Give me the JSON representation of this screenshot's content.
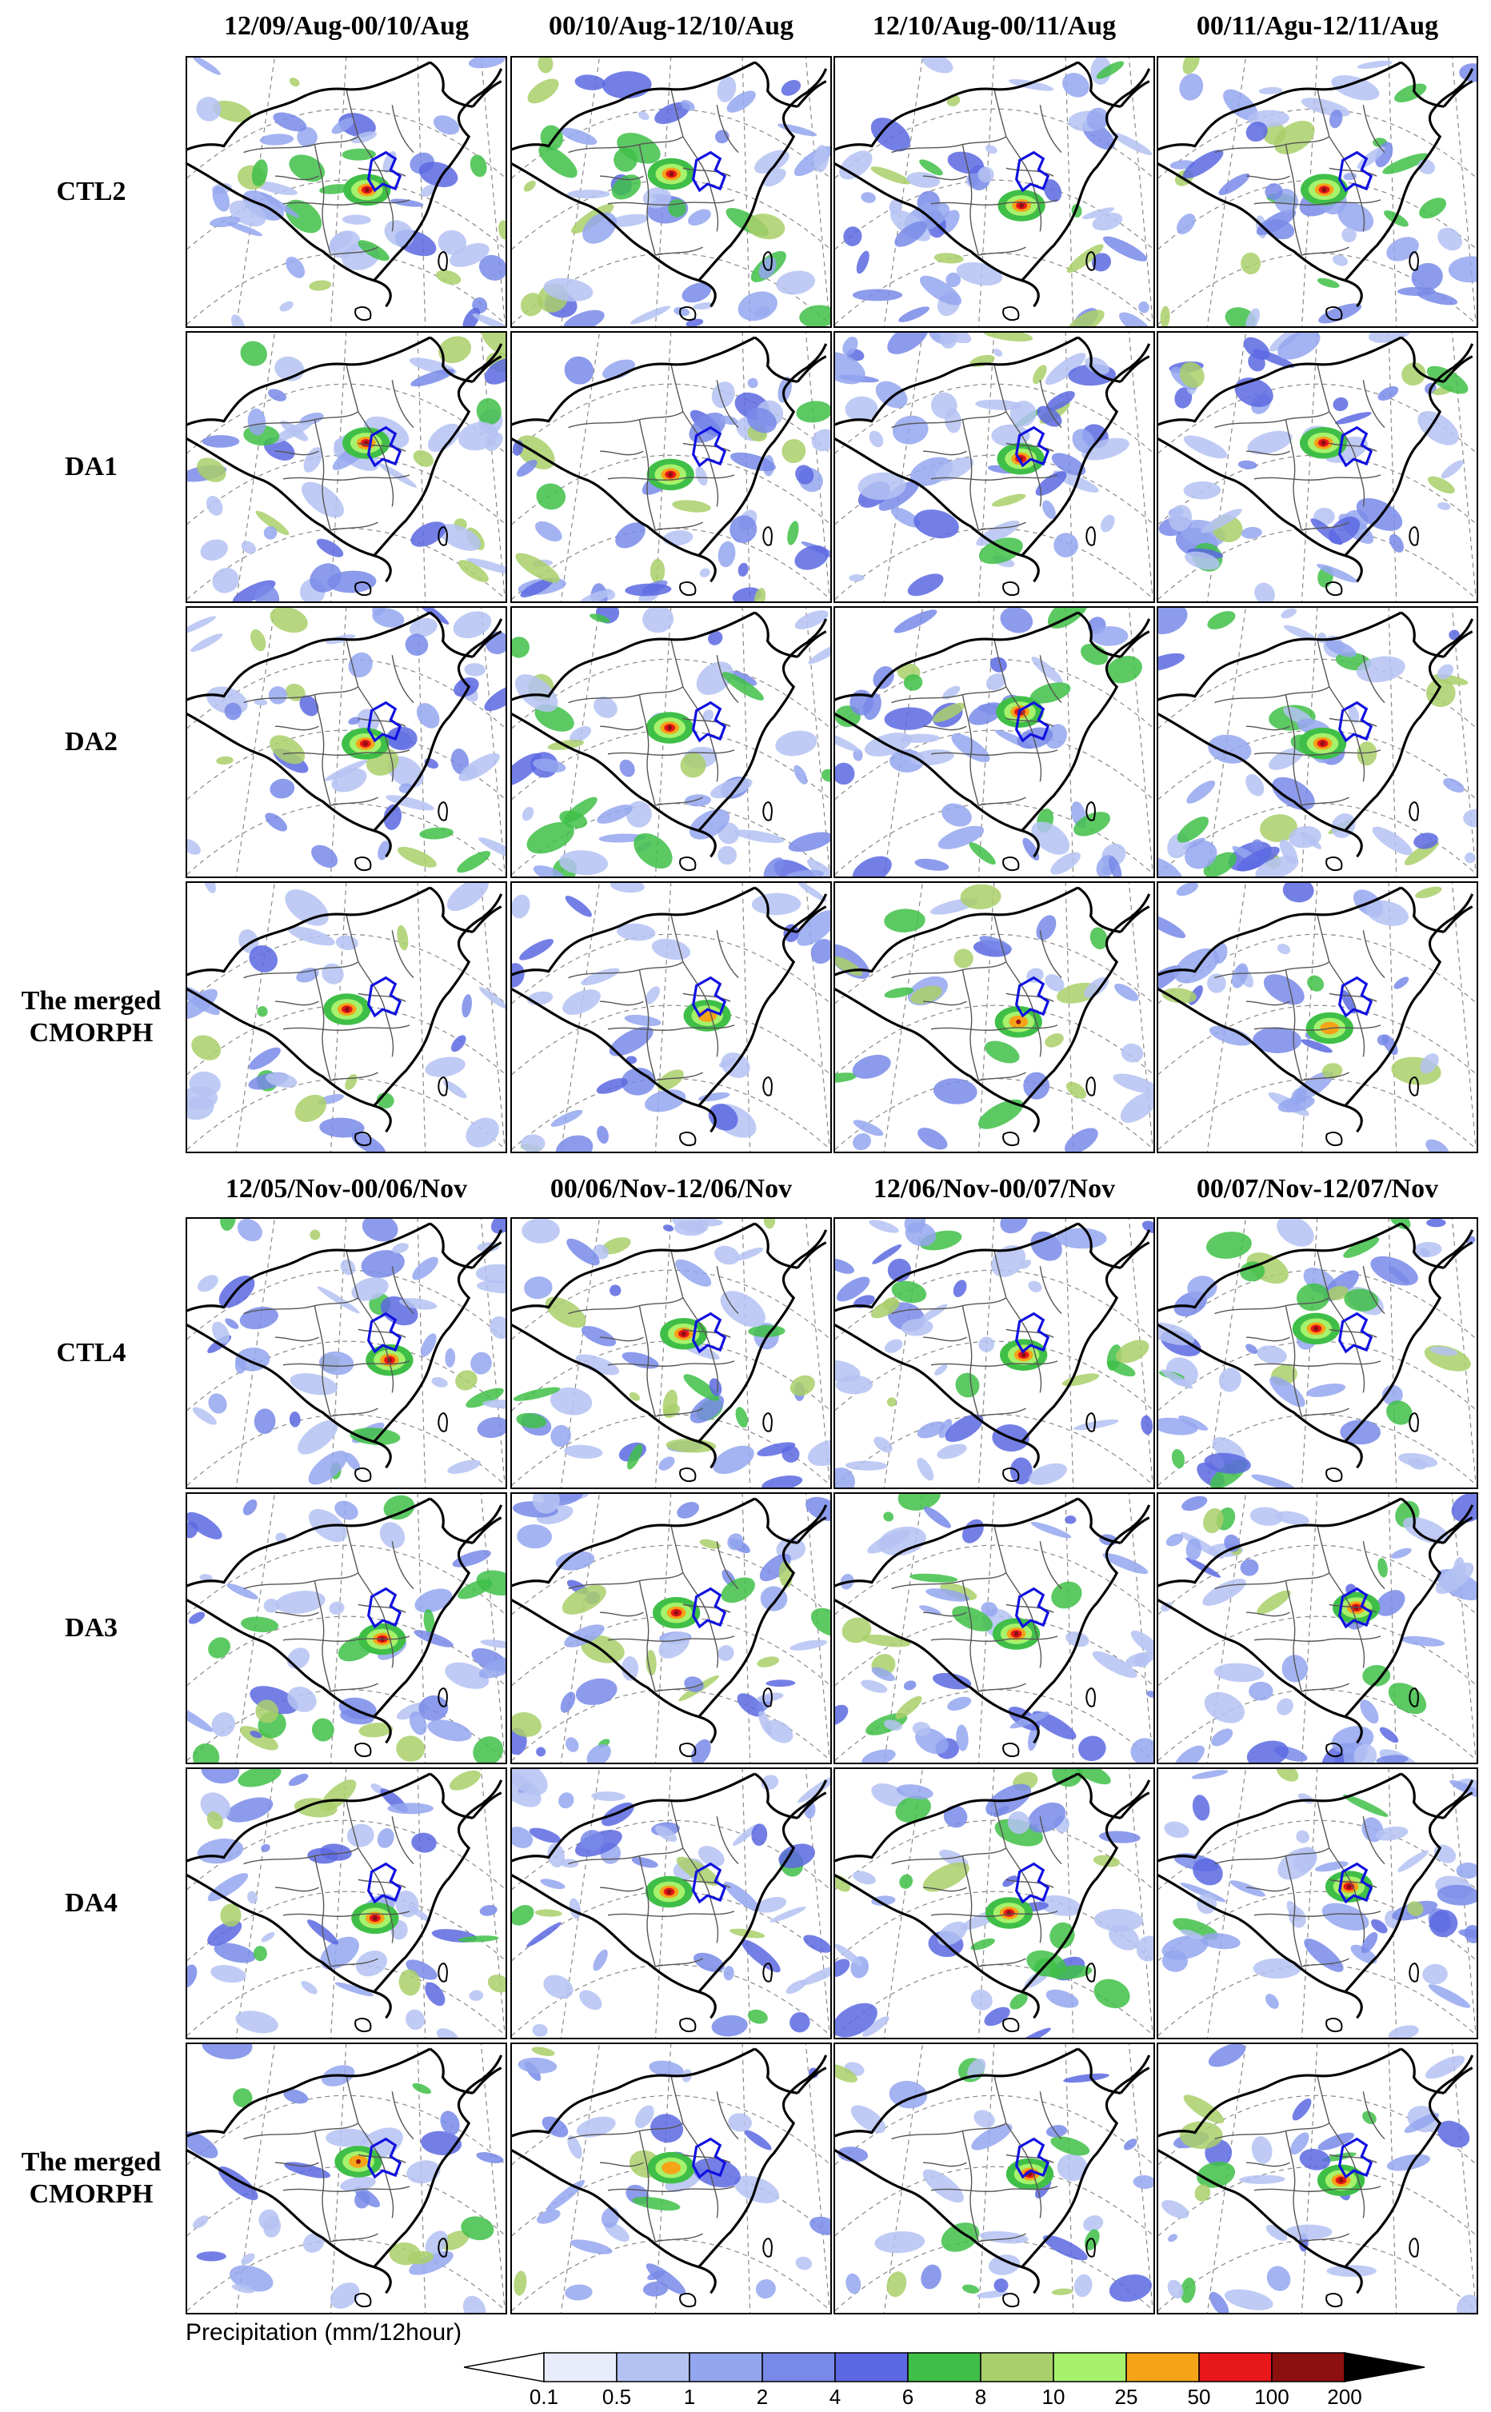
{
  "groups": [
    {
      "columns": [
        "12/09/Aug-00/10/Aug",
        "00/10/Aug-12/10/Aug",
        "12/10/Aug-00/11/Aug",
        "00/11/Agu-12/11/Aug"
      ],
      "rows": [
        {
          "label": [
            "CTL2"
          ],
          "rain": 0.85
        },
        {
          "label": [
            "DA1"
          ],
          "rain": 0.85
        },
        {
          "label": [
            "DA2"
          ],
          "rain": 0.85
        },
        {
          "label": [
            "The merged",
            "CMORPH"
          ],
          "rain": 0.55
        }
      ]
    },
    {
      "columns": [
        "12/05/Nov-00/06/Nov",
        "00/06/Nov-12/06/Nov",
        "12/06/Nov-00/07/Nov",
        "00/07/Nov-12/07/Nov"
      ],
      "rows": [
        {
          "label": [
            "CTL4"
          ],
          "rain": 0.8
        },
        {
          "label": [
            "DA3"
          ],
          "rain": 0.8
        },
        {
          "label": [
            "DA4"
          ],
          "rain": 0.8
        },
        {
          "label": [
            "The merged",
            "CMORPH"
          ],
          "rain": 0.55
        }
      ]
    }
  ],
  "legend": {
    "title": "Precipitation (mm/12hour)",
    "ticks": [
      "0.1",
      "0.5",
      "1",
      "2",
      "4",
      "6",
      "8",
      "10",
      "25",
      "50",
      "100",
      "200"
    ],
    "colors": [
      "#ffffff",
      "#e8ecfb",
      "#b4c2f2",
      "#94a6ee",
      "#7889e8",
      "#5c68e2",
      "#3fbf48",
      "#a9cf6a",
      "#a7f26c",
      "#f5a418",
      "#e8171a",
      "#8d1010",
      "#000000"
    ]
  }
}
